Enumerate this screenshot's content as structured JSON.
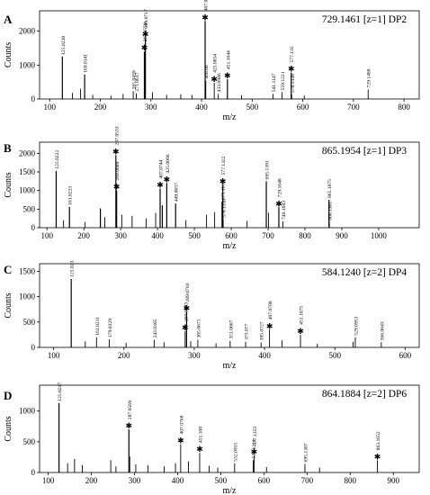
{
  "chart_data": [
    {
      "type": "line",
      "panel_letter": "A",
      "precursor": "729.1461 [z=1] DP2",
      "xlabel": "m/z",
      "ylabel": "Counts",
      "xlim": [
        80,
        830
      ],
      "ylim": [
        0,
        2600
      ],
      "x_ticks": [
        100,
        200,
        300,
        400,
        500,
        600,
        700,
        800
      ],
      "y_ticks": [
        0,
        1000,
        2000
      ],
      "peaks": [
        {
          "x": 125.0238,
          "y": 1250,
          "label": "125.0238",
          "star": false
        },
        {
          "x": 145.0,
          "y": 180
        },
        {
          "x": 161.0,
          "y": 300
        },
        {
          "x": 169.0141,
          "y": 720,
          "label": "169.0141",
          "star": false
        },
        {
          "x": 185.0,
          "y": 120
        },
        {
          "x": 221.0,
          "y": 90
        },
        {
          "x": 245.0,
          "y": 150
        },
        {
          "x": 265.0439,
          "y": 230,
          "label": "265.0439",
          "star": false
        },
        {
          "x": 271.0617,
          "y": 170,
          "label": "271.0617",
          "star": false
        },
        {
          "x": 289.0717,
          "y": 1800,
          "label": "289.0717",
          "star": true
        },
        {
          "x": 287.0559,
          "y": 1400,
          "label": "287.0559",
          "star": true
        },
        {
          "x": 303.0,
          "y": 200
        },
        {
          "x": 331.0,
          "y": 120
        },
        {
          "x": 359.0,
          "y": 140
        },
        {
          "x": 381.0,
          "y": 120
        },
        {
          "x": 407.0777,
          "y": 2300,
          "label": "407.0777",
          "star": true
        },
        {
          "x": 408.08,
          "y": 540,
          "label": "408.08",
          "star": false
        },
        {
          "x": 425.0854,
          "y": 480,
          "label": "425.0854",
          "star": true
        },
        {
          "x": 433.0946,
          "y": 150,
          "label": "433.0946",
          "star": false
        },
        {
          "x": 451.1044,
          "y": 580,
          "label": "451.1044",
          "star": true
        },
        {
          "x": 479.0,
          "y": 110
        },
        {
          "x": 541.1147,
          "y": 150,
          "label": "541.1147",
          "star": false
        },
        {
          "x": 559.1221,
          "y": 200,
          "label": "559.1221",
          "star": false
        },
        {
          "x": 577.135,
          "y": 780,
          "label": "577.135",
          "star": true
        },
        {
          "x": 578.1336,
          "y": 130,
          "label": "578.1336",
          "star": false
        },
        {
          "x": 603.0,
          "y": 100
        },
        {
          "x": 729.1488,
          "y": 280,
          "label": "729.1488",
          "star": false
        }
      ]
    },
    {
      "type": "line",
      "panel_letter": "B",
      "precursor": "865.1954 [z=1] DP3",
      "xlabel": "m/z",
      "ylabel": "Counts",
      "xlim": [
        80,
        1110
      ],
      "ylim": [
        0,
        2300
      ],
      "x_ticks": [
        100,
        200,
        300,
        400,
        500,
        600,
        700,
        800,
        900,
        1000
      ],
      "y_ticks": [
        0,
        500,
        1000,
        1500,
        2000
      ],
      "peaks": [
        {
          "x": 125.0222,
          "y": 1530,
          "label": "125.0222",
          "star": false
        },
        {
          "x": 145.0,
          "y": 200
        },
        {
          "x": 161.0223,
          "y": 560,
          "label": "161.0223",
          "star": false
        },
        {
          "x": 203.0,
          "y": 150
        },
        {
          "x": 245.0,
          "y": 520
        },
        {
          "x": 257.0,
          "y": 280
        },
        {
          "x": 287.0533,
          "y": 1950,
          "label": "287.0533",
          "star": true
        },
        {
          "x": 289.0688,
          "y": 1000,
          "label": "289.0688",
          "star": true
        },
        {
          "x": 303.0,
          "y": 350
        },
        {
          "x": 331.0,
          "y": 320
        },
        {
          "x": 369.0,
          "y": 250
        },
        {
          "x": 395.0,
          "y": 400
        },
        {
          "x": 407.0744,
          "y": 1050,
          "label": "407.0744",
          "star": true
        },
        {
          "x": 413.0,
          "y": 600
        },
        {
          "x": 425.0866,
          "y": 1200,
          "label": "425.0866",
          "star": true
        },
        {
          "x": 449.0657,
          "y": 650,
          "label": "449.0657",
          "star": false
        },
        {
          "x": 477.0,
          "y": 200
        },
        {
          "x": 533.0,
          "y": 350
        },
        {
          "x": 555.0,
          "y": 420
        },
        {
          "x": 575.1163,
          "y": 700,
          "label": "575.1163",
          "star": false
        },
        {
          "x": 577.1322,
          "y": 1150,
          "label": "577.1322",
          "star": true
        },
        {
          "x": 578.1338,
          "y": 220,
          "label": "578.1338",
          "star": false
        },
        {
          "x": 643.0,
          "y": 180
        },
        {
          "x": 695.1391,
          "y": 1250,
          "label": "695.1391",
          "star": false
        },
        {
          "x": 701.0,
          "y": 400
        },
        {
          "x": 729.1648,
          "y": 550,
          "label": "729.1648",
          "star": true
        },
        {
          "x": 740.1683,
          "y": 170,
          "label": "740.1683",
          "star": false
        },
        {
          "x": 865.1875,
          "y": 750,
          "label": "865.1875",
          "star": false
        },
        {
          "x": 866.1961,
          "y": 150,
          "label": "866.1961",
          "star": false
        }
      ]
    },
    {
      "type": "line",
      "panel_letter": "C",
      "precursor": "584.1240 [z=2] DP4",
      "xlabel": "m/z",
      "ylabel": "Counts",
      "xlim": [
        80,
        620
      ],
      "ylim": [
        0,
        1650
      ],
      "x_ticks": [
        100,
        200,
        300,
        400,
        500,
        600
      ],
      "y_ticks": [
        0,
        500,
        1000,
        1500
      ],
      "peaks": [
        {
          "x": 125.023,
          "y": 1350,
          "label": "125.023",
          "star": false
        },
        {
          "x": 145.0,
          "y": 120
        },
        {
          "x": 161.0211,
          "y": 200,
          "label": "161.0211",
          "star": false
        },
        {
          "x": 179.0329,
          "y": 160,
          "label": "179.0329",
          "star": false
        },
        {
          "x": 203.0,
          "y": 90
        },
        {
          "x": 243.0305,
          "y": 150,
          "label": "243.0305",
          "star": false
        },
        {
          "x": 257.0,
          "y": 100
        },
        {
          "x": 287.0543,
          "y": 320,
          "label": "287.0543",
          "star": true
        },
        {
          "x": 289.0703,
          "y": 700,
          "label": "289.0703",
          "star": true
        },
        {
          "x": 295.0,
          "y": 120
        },
        {
          "x": 305.0671,
          "y": 150,
          "label": "305.0671",
          "star": false
        },
        {
          "x": 331.0,
          "y": 80
        },
        {
          "x": 351.0667,
          "y": 130,
          "label": "351.0667",
          "star": false
        },
        {
          "x": 373.077,
          "y": 110,
          "label": "373.077",
          "star": false
        },
        {
          "x": 395.0727,
          "y": 100,
          "label": "395.0727",
          "star": false
        },
        {
          "x": 407.0788,
          "y": 350,
          "label": "407.0788",
          "star": true
        },
        {
          "x": 425.0,
          "y": 140
        },
        {
          "x": 451.1075,
          "y": 250,
          "label": "451.1075",
          "star": true
        },
        {
          "x": 475.0,
          "y": 70
        },
        {
          "x": 526.0,
          "y": 110
        },
        {
          "x": 529.0953,
          "y": 200,
          "label": "529.0953",
          "star": false
        },
        {
          "x": 566.0643,
          "y": 100,
          "label": "566.0643",
          "star": false
        }
      ]
    },
    {
      "type": "line",
      "panel_letter": "D",
      "precursor": "864.1884 [z=2] DP6",
      "xlabel": "m/z",
      "ylabel": "Counts",
      "xlim": [
        80,
        960
      ],
      "ylim": [
        0,
        1420
      ],
      "x_ticks": [
        100,
        200,
        300,
        400,
        500,
        600,
        700,
        800,
        900
      ],
      "y_ticks": [
        0,
        500,
        1000
      ],
      "peaks": [
        {
          "x": 125.0247,
          "y": 1130,
          "label": "125.0247",
          "star": false
        },
        {
          "x": 145.0,
          "y": 150
        },
        {
          "x": 161.0,
          "y": 220
        },
        {
          "x": 179.0,
          "y": 120
        },
        {
          "x": 245.0,
          "y": 200
        },
        {
          "x": 257.0,
          "y": 100
        },
        {
          "x": 287.0569,
          "y": 700,
          "label": "287.0569",
          "star": true
        },
        {
          "x": 289.0,
          "y": 260
        },
        {
          "x": 303.0,
          "y": 130
        },
        {
          "x": 331.0,
          "y": 120
        },
        {
          "x": 369.0,
          "y": 100
        },
        {
          "x": 395.0,
          "y": 150
        },
        {
          "x": 407.0768,
          "y": 460,
          "label": "407.0768",
          "star": true
        },
        {
          "x": 425.0,
          "y": 180
        },
        {
          "x": 451.108,
          "y": 320,
          "label": "451.108",
          "star": true
        },
        {
          "x": 473.0,
          "y": 110
        },
        {
          "x": 493.0,
          "y": 80
        },
        {
          "x": 532.0915,
          "y": 150,
          "label": "532.0915",
          "star": false
        },
        {
          "x": 575.1214,
          "y": 200,
          "label": "575.1214",
          "star": false
        },
        {
          "x": 577.1353,
          "y": 280,
          "label": "577.1353",
          "star": true
        },
        {
          "x": 606.0,
          "y": 90
        },
        {
          "x": 695.1387,
          "y": 140,
          "label": "695.1387",
          "star": false
        },
        {
          "x": 729.0,
          "y": 80
        },
        {
          "x": 863.1652,
          "y": 200,
          "label": "863.1652",
          "star": true
        }
      ]
    }
  ]
}
